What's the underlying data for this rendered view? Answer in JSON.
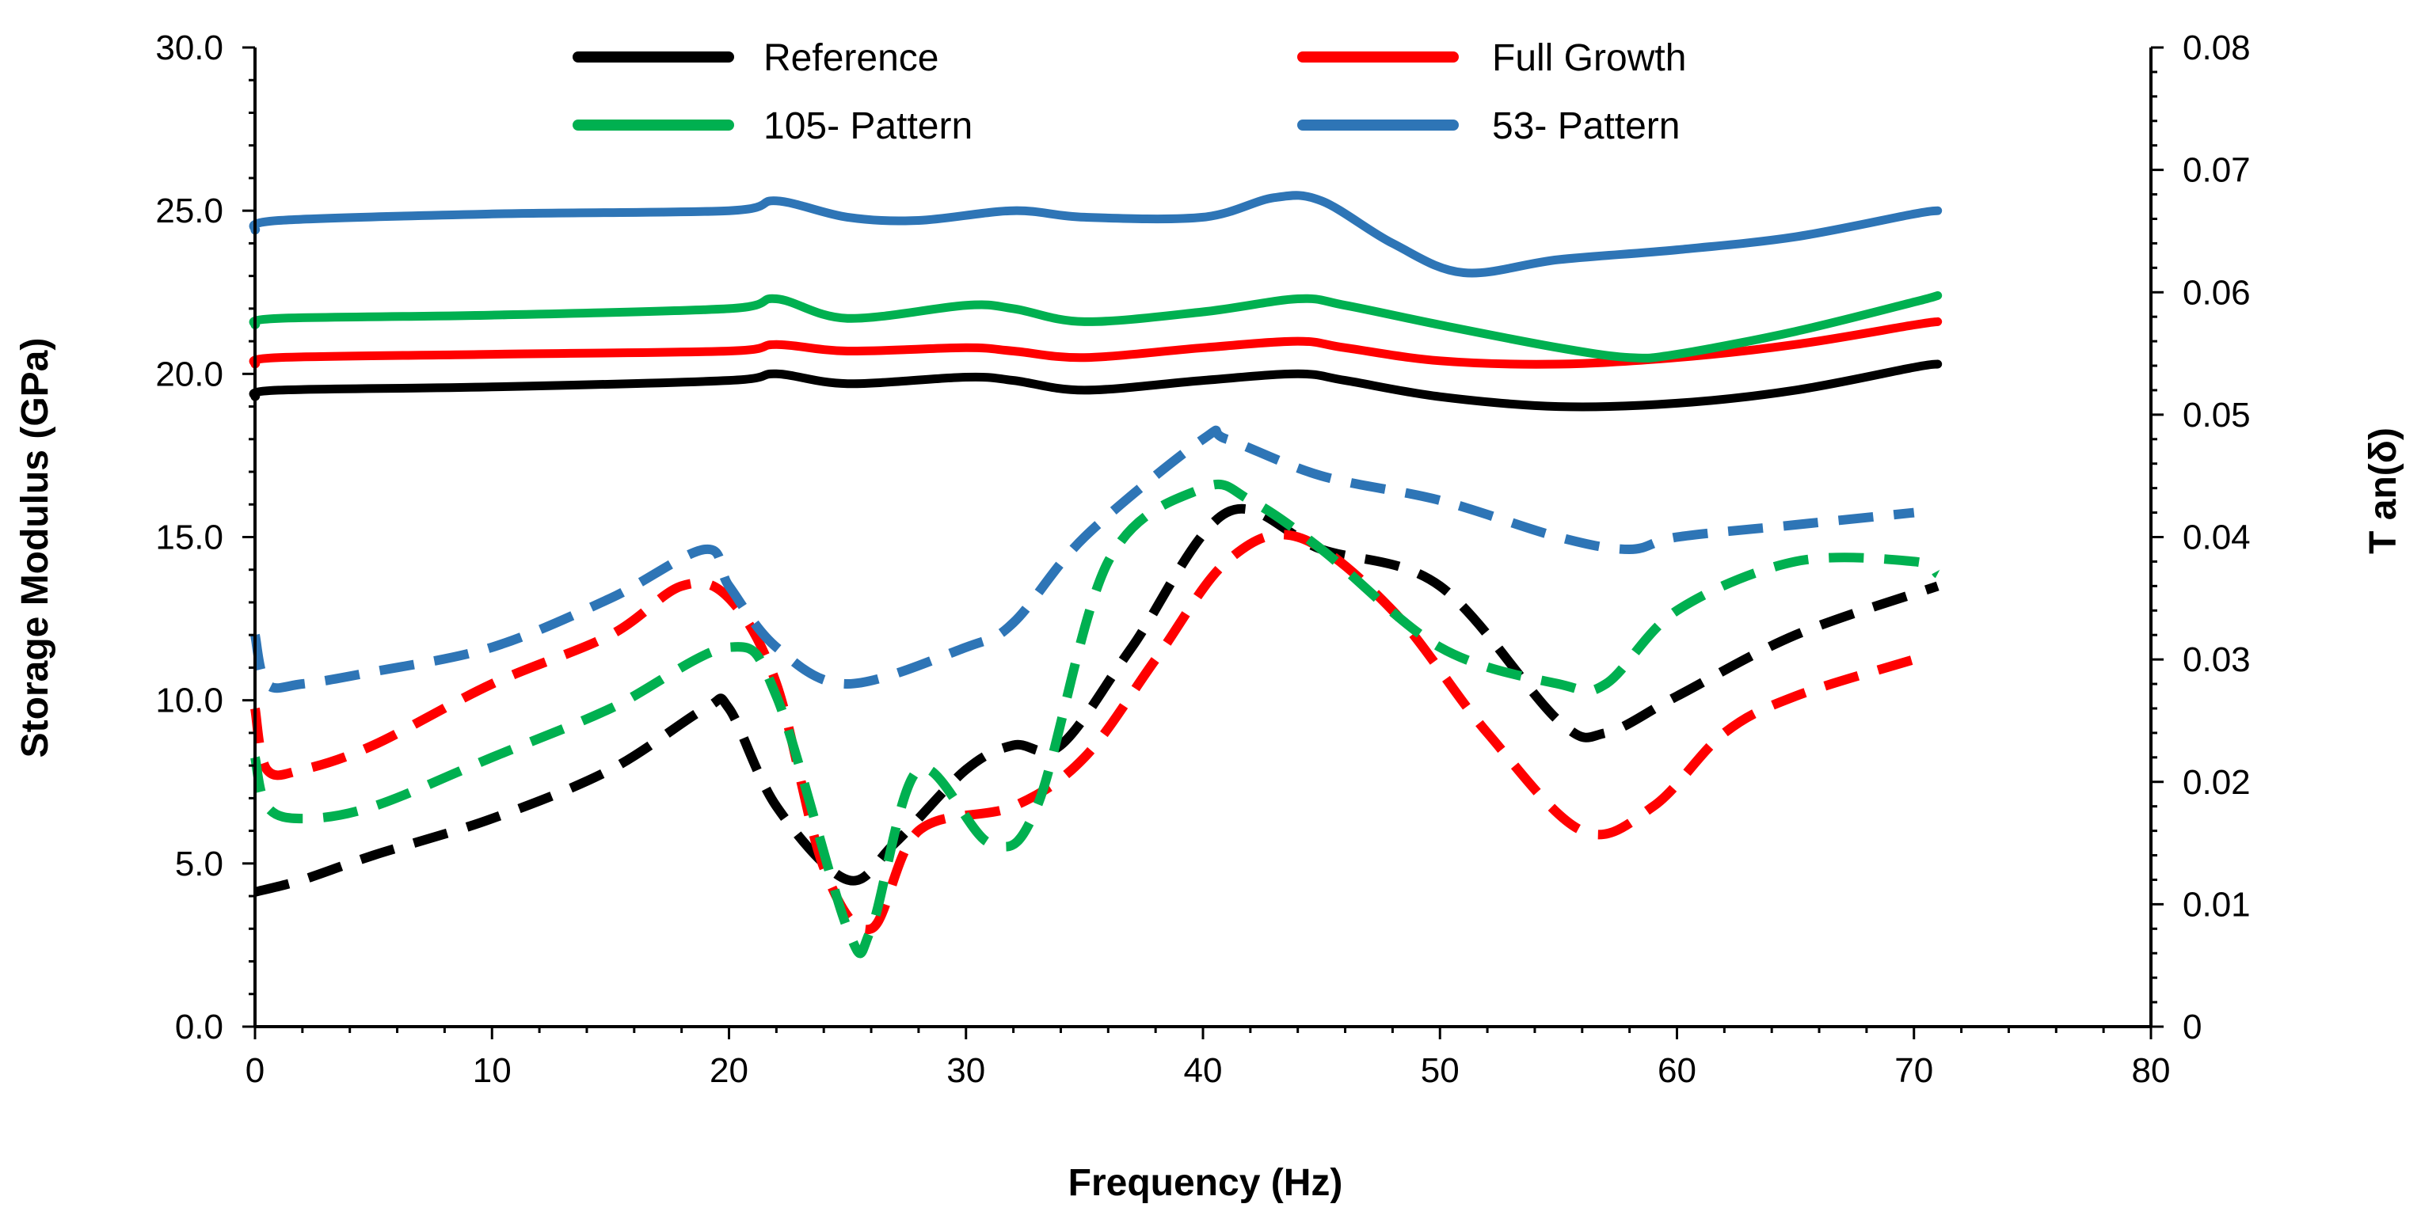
{
  "chart_data": {
    "type": "line",
    "title": "",
    "xlabel": "Frequency (Hz)",
    "ylabel": "Storage Modulus (GPa)",
    "y2label": "T an(δ)",
    "xlim": [
      0,
      80
    ],
    "ylim": [
      0,
      30
    ],
    "y2lim": [
      0,
      0.08
    ],
    "x_ticks": [
      "0",
      "10",
      "20",
      "30",
      "40",
      "50",
      "60",
      "70",
      "80"
    ],
    "y_ticks": [
      "0.0",
      "5.0",
      "10.0",
      "15.0",
      "20.0",
      "25.0",
      "30.0"
    ],
    "y2_ticks": [
      "0",
      "0.01",
      "0.02",
      "0.03",
      "0.04",
      "0.05",
      "0.06",
      "0.07",
      "0.08"
    ],
    "grid": false,
    "legend_position": "top",
    "storage_modulus": [
      {
        "name": "Reference",
        "color": "#000000",
        "axis": "left",
        "style": "solid",
        "x": [
          0,
          1,
          10,
          20,
          22,
          25,
          30,
          32,
          35,
          40,
          44,
          46,
          50,
          55,
          60,
          65,
          70,
          71
        ],
        "y": [
          19.3,
          19.5,
          19.6,
          19.8,
          20.0,
          19.7,
          19.9,
          19.8,
          19.5,
          19.8,
          20.0,
          19.8,
          19.3,
          19.0,
          19.1,
          19.5,
          20.2,
          20.3
        ]
      },
      {
        "name": "Full Growth",
        "color": "#ff0000",
        "axis": "left",
        "style": "solid",
        "x": [
          0,
          1,
          10,
          20,
          22,
          25,
          30,
          32,
          35,
          40,
          44,
          46,
          50,
          55,
          60,
          65,
          70,
          71
        ],
        "y": [
          20.3,
          20.5,
          20.6,
          20.7,
          20.9,
          20.7,
          20.8,
          20.7,
          20.5,
          20.8,
          21.0,
          20.8,
          20.4,
          20.3,
          20.5,
          20.9,
          21.5,
          21.6
        ]
      },
      {
        "name": "105- Pattern",
        "color": "#00b050",
        "axis": "left",
        "style": "solid",
        "x": [
          0,
          1,
          10,
          20,
          22,
          25,
          30,
          32,
          35,
          40,
          44,
          46,
          50,
          55,
          58,
          60,
          65,
          70,
          71
        ],
        "y": [
          21.5,
          21.7,
          21.8,
          22.0,
          22.3,
          21.7,
          22.1,
          22.0,
          21.6,
          21.9,
          22.3,
          22.1,
          21.5,
          20.8,
          20.5,
          20.6,
          21.3,
          22.2,
          22.4
        ]
      },
      {
        "name": "53- Pattern",
        "color": "#2e75b6",
        "axis": "left",
        "style": "solid",
        "x": [
          0,
          1,
          10,
          20,
          22,
          25,
          28,
          32,
          35,
          40,
          43,
          45,
          48,
          51,
          55,
          60,
          65,
          70,
          71
        ],
        "y": [
          24.4,
          24.7,
          24.9,
          25.0,
          25.3,
          24.8,
          24.7,
          25.0,
          24.8,
          24.8,
          25.4,
          25.3,
          24.0,
          23.1,
          23.5,
          23.8,
          24.2,
          24.9,
          25.0
        ]
      }
    ],
    "tan_delta": [
      {
        "name": "Reference",
        "color": "#000000",
        "axis": "right",
        "style": "dashed",
        "x": [
          0,
          2,
          5,
          10,
          15,
          19,
          20,
          22,
          25,
          27,
          30,
          32,
          34,
          37,
          41,
          45,
          50,
          55,
          57,
          60,
          65,
          71
        ],
        "y": [
          0.011,
          0.012,
          0.014,
          0.017,
          0.021,
          0.026,
          0.026,
          0.018,
          0.012,
          0.015,
          0.021,
          0.023,
          0.023,
          0.031,
          0.042,
          0.039,
          0.036,
          0.025,
          0.024,
          0.027,
          0.032,
          0.036
        ]
      },
      {
        "name": "Full Growth",
        "color": "#ff0000",
        "axis": "right",
        "style": "dashed",
        "x": [
          0,
          0.5,
          2,
          5,
          10,
          15,
          18,
          20,
          22,
          24,
          26,
          28,
          32,
          35,
          38,
          41,
          44,
          48,
          52,
          56,
          59,
          62,
          65,
          70
        ],
        "y": [
          0.026,
          0.021,
          0.021,
          0.023,
          0.028,
          0.032,
          0.036,
          0.035,
          0.028,
          0.013,
          0.008,
          0.016,
          0.018,
          0.022,
          0.03,
          0.038,
          0.04,
          0.034,
          0.024,
          0.016,
          0.018,
          0.024,
          0.027,
          0.03
        ]
      },
      {
        "name": "105- Pattern",
        "color": "#00b050",
        "axis": "right",
        "style": "dashed",
        "x": [
          0,
          0.5,
          2,
          5,
          10,
          15,
          20,
          22,
          25,
          26,
          28,
          31,
          33,
          36,
          40,
          42,
          45,
          50,
          55,
          57,
          60,
          65,
          70,
          71
        ],
        "y": [
          0.022,
          0.018,
          0.017,
          0.018,
          0.022,
          0.026,
          0.031,
          0.027,
          0.008,
          0.008,
          0.021,
          0.015,
          0.018,
          0.038,
          0.044,
          0.043,
          0.039,
          0.031,
          0.028,
          0.028,
          0.034,
          0.038,
          0.038,
          0.037
        ]
      },
      {
        "name": "53- Pattern",
        "color": "#2e75b6",
        "axis": "right",
        "style": "dashed",
        "x": [
          0,
          0.5,
          2,
          5,
          10,
          15,
          19,
          20,
          22,
          25,
          30,
          32,
          35,
          40,
          41,
          45,
          50,
          55,
          58,
          60,
          65,
          70
        ],
        "y": [
          0.032,
          0.028,
          0.028,
          0.029,
          0.031,
          0.035,
          0.039,
          0.036,
          0.031,
          0.028,
          0.031,
          0.033,
          0.04,
          0.048,
          0.048,
          0.045,
          0.043,
          0.04,
          0.039,
          0.04,
          0.041,
          0.042
        ]
      }
    ],
    "legend": [
      {
        "label": "Reference",
        "color": "#000000"
      },
      {
        "label": "Full Growth",
        "color": "#ff0000"
      },
      {
        "label": "105- Pattern",
        "color": "#00b050"
      },
      {
        "label": "53- Pattern",
        "color": "#2e75b6"
      }
    ]
  }
}
